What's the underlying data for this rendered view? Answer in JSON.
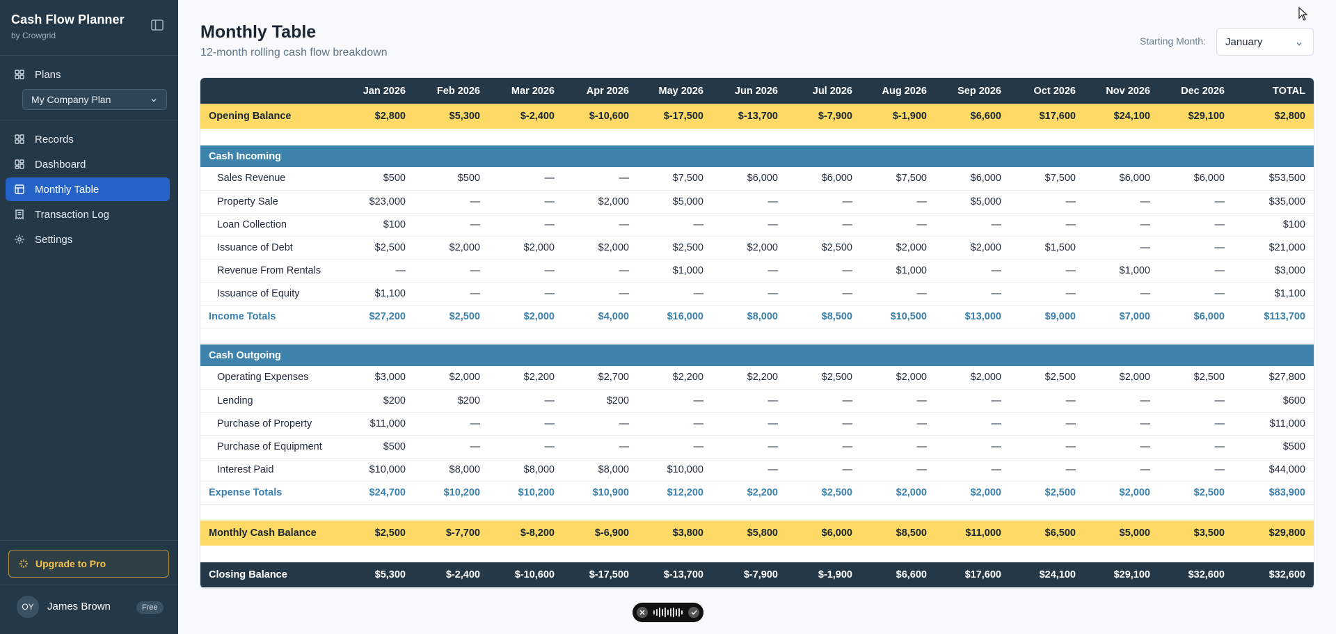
{
  "app": {
    "title": "Cash Flow Planner",
    "subtitle": "by Crowgrid"
  },
  "sidebar": {
    "plans_label": "Plans",
    "plan_select": "My Company Plan",
    "items": [
      {
        "label": "Records"
      },
      {
        "label": "Dashboard"
      },
      {
        "label": "Monthly Table"
      },
      {
        "label": "Transaction Log"
      },
      {
        "label": "Settings"
      }
    ],
    "upgrade_label": "Upgrade to Pro"
  },
  "user": {
    "initials": "OY",
    "name": "James Brown",
    "plan_badge": "Free"
  },
  "page": {
    "title": "Monthly Table",
    "subtitle": "12-month rolling cash flow breakdown"
  },
  "start_month": {
    "label": "Starting Month:",
    "value": "January"
  },
  "table": {
    "headers": [
      "",
      "Jan 2026",
      "Feb 2026",
      "Mar 2026",
      "Apr 2026",
      "May 2026",
      "Jun 2026",
      "Jul 2026",
      "Aug 2026",
      "Sep 2026",
      "Oct 2026",
      "Nov 2026",
      "Dec 2026",
      "TOTAL"
    ],
    "opening": [
      "Opening Balance",
      "$2,800",
      "$5,300",
      "$-2,400",
      "$-10,600",
      "$-17,500",
      "$-13,700",
      "$-7,900",
      "$-1,900",
      "$6,600",
      "$17,600",
      "$24,100",
      "$29,100",
      "$2,800"
    ],
    "incoming_label": "Cash Incoming",
    "incoming": [
      [
        "Sales Revenue",
        "$500",
        "$500",
        "—",
        "—",
        "$7,500",
        "$6,000",
        "$6,000",
        "$7,500",
        "$6,000",
        "$7,500",
        "$6,000",
        "$6,000",
        "$53,500"
      ],
      [
        "Property Sale",
        "$23,000",
        "—",
        "—",
        "$2,000",
        "$5,000",
        "—",
        "—",
        "—",
        "$5,000",
        "—",
        "—",
        "—",
        "$35,000"
      ],
      [
        "Loan Collection",
        "$100",
        "—",
        "—",
        "—",
        "—",
        "—",
        "—",
        "—",
        "—",
        "—",
        "—",
        "—",
        "$100"
      ],
      [
        "Issuance of Debt",
        "$2,500",
        "$2,000",
        "$2,000",
        "$2,000",
        "$2,500",
        "$2,000",
        "$2,500",
        "$2,000",
        "$2,000",
        "$1,500",
        "—",
        "—",
        "$21,000"
      ],
      [
        "Revenue From Rentals",
        "—",
        "—",
        "—",
        "—",
        "$1,000",
        "—",
        "—",
        "$1,000",
        "—",
        "—",
        "$1,000",
        "—",
        "$3,000"
      ],
      [
        "Issuance of Equity",
        "$1,100",
        "—",
        "—",
        "—",
        "—",
        "—",
        "—",
        "—",
        "—",
        "—",
        "—",
        "—",
        "$1,100"
      ]
    ],
    "income_totals": [
      "Income Totals",
      "$27,200",
      "$2,500",
      "$2,000",
      "$4,000",
      "$16,000",
      "$8,000",
      "$8,500",
      "$10,500",
      "$13,000",
      "$9,000",
      "$7,000",
      "$6,000",
      "$113,700"
    ],
    "outgoing_label": "Cash Outgoing",
    "outgoing": [
      [
        "Operating Expenses",
        "$3,000",
        "$2,000",
        "$2,200",
        "$2,700",
        "$2,200",
        "$2,200",
        "$2,500",
        "$2,000",
        "$2,000",
        "$2,500",
        "$2,000",
        "$2,500",
        "$27,800"
      ],
      [
        "Lending",
        "$200",
        "$200",
        "—",
        "$200",
        "—",
        "—",
        "—",
        "—",
        "—",
        "—",
        "—",
        "—",
        "$600"
      ],
      [
        "Purchase of Property",
        "$11,000",
        "—",
        "—",
        "—",
        "—",
        "—",
        "—",
        "—",
        "—",
        "—",
        "—",
        "—",
        "$11,000"
      ],
      [
        "Purchase of Equipment",
        "$500",
        "—",
        "—",
        "—",
        "—",
        "—",
        "—",
        "—",
        "—",
        "—",
        "—",
        "—",
        "$500"
      ],
      [
        "Interest Paid",
        "$10,000",
        "$8,000",
        "$8,000",
        "$8,000",
        "$10,000",
        "—",
        "—",
        "—",
        "—",
        "—",
        "—",
        "—",
        "$44,000"
      ]
    ],
    "expense_totals": [
      "Expense Totals",
      "$24,700",
      "$10,200",
      "$10,200",
      "$10,900",
      "$12,200",
      "$2,200",
      "$2,500",
      "$2,000",
      "$2,000",
      "$2,500",
      "$2,000",
      "$2,500",
      "$83,900"
    ],
    "monthly": [
      "Monthly Cash Balance",
      "$2,500",
      "$-7,700",
      "$-8,200",
      "$-6,900",
      "$3,800",
      "$5,800",
      "$6,000",
      "$8,500",
      "$11,000",
      "$6,500",
      "$5,000",
      "$3,500",
      "$29,800"
    ],
    "closing": [
      "Closing Balance",
      "$5,300",
      "$-2,400",
      "$-10,600",
      "$-17,500",
      "$-13,700",
      "$-7,900",
      "$-1,900",
      "$6,600",
      "$17,600",
      "$24,100",
      "$29,100",
      "$32,600",
      "$32,600"
    ]
  }
}
